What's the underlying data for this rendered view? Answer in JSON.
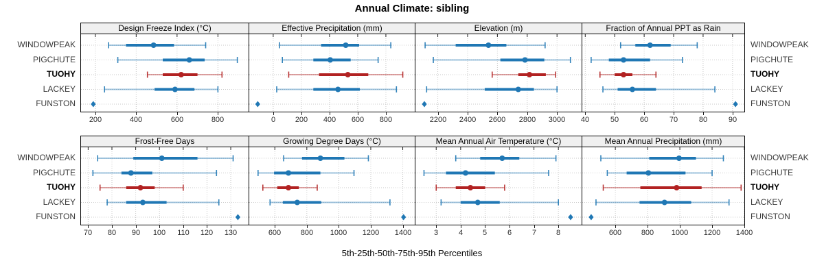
{
  "title": "Annual Climate: sibling",
  "footer": "5th-25th-50th-75th-95th Percentiles",
  "colors": {
    "series_default": "#1F77B4",
    "series_highlight": "#B22222",
    "grid": "#C9C9C9",
    "strip_bg": "#F0F0F0",
    "panel_border": "#000000",
    "tick_label": "#2E2E2E",
    "site_label": "#3A3A3A"
  },
  "sites": [
    {
      "name": "WINDOWPEAK",
      "bold": false
    },
    {
      "name": "PIGCHUTE",
      "bold": false
    },
    {
      "name": "TUOHY",
      "bold": true
    },
    {
      "name": "LACKEY",
      "bold": false
    },
    {
      "name": "FUNSTON",
      "bold": false
    }
  ],
  "highlight_site": "TUOHY",
  "chart_data": {
    "type": "interval-trellis",
    "title": "Annual Climate: sibling",
    "xlabel": "5th-25th-50th-75th-95th Percentiles",
    "percentiles": [
      5,
      25,
      50,
      75,
      95
    ],
    "grid": "dotted",
    "panels": [
      {
        "title": "Design Freeze Index (°C)",
        "row": 0,
        "col": 0,
        "xlim": [
          130,
          950
        ],
        "ticks": [
          200,
          400,
          600,
          800
        ],
        "series": [
          {
            "site": "WINDOWPEAK",
            "values": [
              265,
              350,
              485,
              585,
              740
            ]
          },
          {
            "site": "PIGCHUTE",
            "values": [
              310,
              530,
              660,
              735,
              895
            ]
          },
          {
            "site": "TUOHY",
            "values": [
              455,
              530,
              620,
              700,
              820
            ]
          },
          {
            "site": "LACKEY",
            "values": [
              245,
              490,
              590,
              685,
              800
            ]
          },
          {
            "site": "FUNSTON",
            "values": [
              190
            ]
          }
        ]
      },
      {
        "title": "Effective Precipitation (mm)",
        "row": 0,
        "col": 1,
        "xlim": [
          -170,
          1005
        ],
        "ticks": [
          0,
          200,
          400,
          600,
          800
        ],
        "series": [
          {
            "site": "WINDOWPEAK",
            "values": [
              45,
              340,
              515,
              610,
              835
            ]
          },
          {
            "site": "PIGCHUTE",
            "values": [
              65,
              285,
              405,
              550,
              745
            ]
          },
          {
            "site": "TUOHY",
            "values": [
              110,
              325,
              530,
              675,
              920
            ]
          },
          {
            "site": "LACKEY",
            "values": [
              25,
              285,
              460,
              615,
              875
            ]
          },
          {
            "site": "FUNSTON",
            "values": [
              -110
            ]
          }
        ]
      },
      {
        "title": "Elevation (m)",
        "row": 0,
        "col": 2,
        "xlim": [
          2050,
          3165
        ],
        "ticks": [
          2200,
          2400,
          2600,
          2800,
          3000
        ],
        "series": [
          {
            "site": "WINDOWPEAK",
            "values": [
              2115,
              2320,
              2540,
              2660,
              2920
            ]
          },
          {
            "site": "PIGCHUTE",
            "values": [
              2170,
              2620,
              2785,
              2915,
              3090
            ]
          },
          {
            "site": "TUOHY",
            "values": [
              2565,
              2740,
              2815,
              2925,
              2990
            ]
          },
          {
            "site": "LACKEY",
            "values": [
              2125,
              2515,
              2740,
              2845,
              3000
            ]
          },
          {
            "site": "FUNSTON",
            "values": [
              2110
            ]
          }
        ]
      },
      {
        "title": "Fraction of Annual PPT as Rain",
        "row": 0,
        "col": 3,
        "xlim": [
          39,
          94
        ],
        "ticks": [
          40,
          50,
          60,
          70,
          80,
          90
        ],
        "series": [
          {
            "site": "WINDOWPEAK",
            "values": [
              52,
              57,
              62,
              69,
              78
            ]
          },
          {
            "site": "PIGCHUTE",
            "values": [
              42,
              48,
              53,
              62,
              73
            ]
          },
          {
            "site": "TUOHY",
            "values": [
              45,
              50,
              53,
              56,
              64
            ]
          },
          {
            "site": "LACKEY",
            "values": [
              46,
              51,
              56,
              64,
              84
            ]
          },
          {
            "site": "FUNSTON",
            "values": [
              91
            ]
          }
        ]
      },
      {
        "title": "Frost-Free Days",
        "row": 1,
        "col": 0,
        "xlim": [
          67,
          137.5
        ],
        "ticks": [
          70,
          80,
          90,
          100,
          110,
          120,
          130
        ],
        "series": [
          {
            "site": "WINDOWPEAK",
            "values": [
              74,
              89,
              101,
              116,
              131
            ]
          },
          {
            "site": "PIGCHUTE",
            "values": [
              72,
              84,
              88,
              97,
              124
            ]
          },
          {
            "site": "TUOHY",
            "values": [
              75,
              86,
              92,
              98,
              110
            ]
          },
          {
            "site": "LACKEY",
            "values": [
              78,
              86,
              93,
              103,
              125
            ]
          },
          {
            "site": "FUNSTON",
            "values": [
              133
            ]
          }
        ]
      },
      {
        "title": "Growing Degree Days (°C)",
        "row": 1,
        "col": 1,
        "xlim": [
          440,
          1475
        ],
        "ticks": [
          600,
          800,
          1000,
          1200,
          1400
        ],
        "series": [
          {
            "site": "WINDOWPEAK",
            "values": [
              655,
              770,
              885,
              1035,
              1185
            ]
          },
          {
            "site": "PIGCHUTE",
            "values": [
              495,
              595,
              685,
              885,
              1095
            ]
          },
          {
            "site": "TUOHY",
            "values": [
              525,
              615,
              685,
              750,
              865
            ]
          },
          {
            "site": "LACKEY",
            "values": [
              570,
              650,
              740,
              890,
              1320
            ]
          },
          {
            "site": "FUNSTON",
            "values": [
              1405
            ]
          }
        ]
      },
      {
        "title": "Mean Annual Air Temperature (°C)",
        "row": 1,
        "col": 2,
        "xlim": [
          2.15,
          8.95
        ],
        "ticks": [
          3,
          4,
          5,
          6,
          7,
          8
        ],
        "series": [
          {
            "site": "WINDOWPEAK",
            "values": [
              3.8,
              4.8,
              5.7,
              6.4,
              7.9
            ]
          },
          {
            "site": "PIGCHUTE",
            "values": [
              2.5,
              3.4,
              4.2,
              5.4,
              7.6
            ]
          },
          {
            "site": "TUOHY",
            "values": [
              3.0,
              3.8,
              4.4,
              5.0,
              5.8
            ]
          },
          {
            "site": "LACKEY",
            "values": [
              3.2,
              4.0,
              4.7,
              5.6,
              8.0
            ]
          },
          {
            "site": "FUNSTON",
            "values": [
              8.5
            ]
          }
        ]
      },
      {
        "title": "Mean Annual Precipitation (mm)",
        "row": 1,
        "col": 3,
        "xlim": [
          395,
          1400
        ],
        "ticks": [
          600,
          800,
          1000,
          1200,
          1400
        ],
        "series": [
          {
            "site": "WINDOWPEAK",
            "values": [
              510,
              810,
              995,
              1100,
              1270
            ]
          },
          {
            "site": "PIGCHUTE",
            "values": [
              550,
              670,
              805,
              1035,
              1200
            ]
          },
          {
            "site": "TUOHY",
            "values": [
              525,
              755,
              980,
              1135,
              1380
            ]
          },
          {
            "site": "LACKEY",
            "values": [
              480,
              750,
              905,
              1070,
              1305
            ]
          },
          {
            "site": "FUNSTON",
            "values": [
              450
            ]
          }
        ]
      }
    ]
  }
}
